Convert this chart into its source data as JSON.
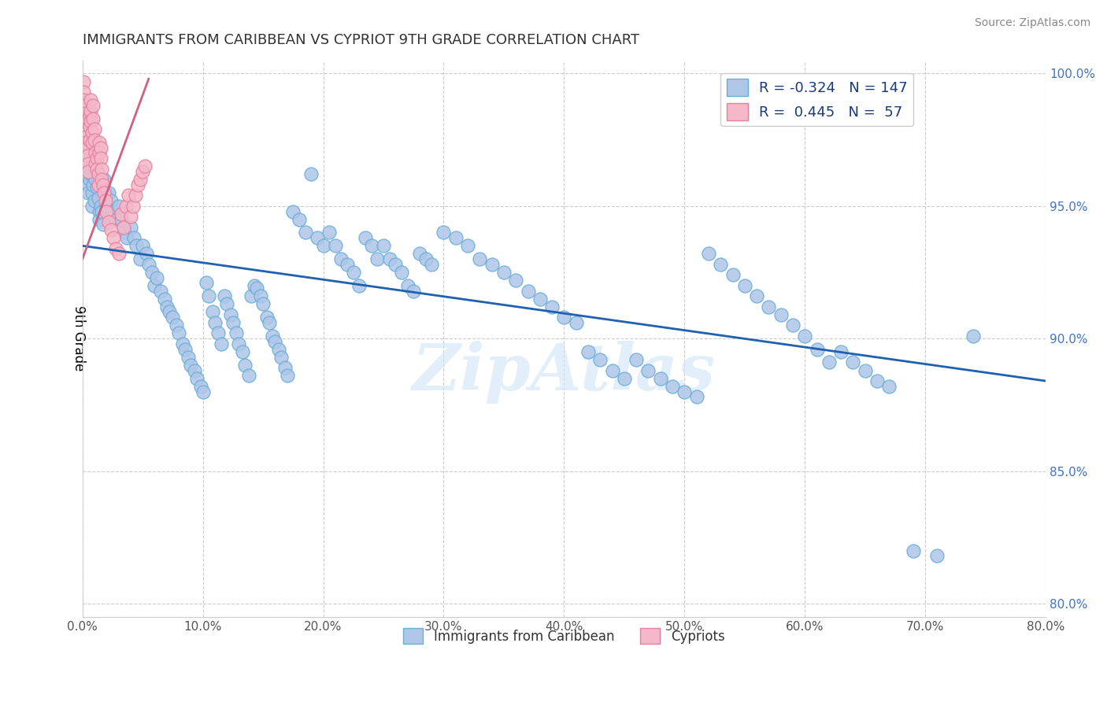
{
  "title": "IMMIGRANTS FROM CARIBBEAN VS CYPRIOT 9TH GRADE CORRELATION CHART",
  "source_text": "Source: ZipAtlas.com",
  "ylabel": "9th Grade",
  "xlim": [
    0.0,
    0.8
  ],
  "ylim": [
    0.795,
    1.005
  ],
  "xticks": [
    0.0,
    0.1,
    0.2,
    0.3,
    0.4,
    0.5,
    0.6,
    0.7,
    0.8
  ],
  "xticklabels": [
    "0.0%",
    "10.0%",
    "20.0%",
    "30.0%",
    "40.0%",
    "50.0%",
    "60.0%",
    "70.0%",
    "80.0%"
  ],
  "yticks": [
    0.8,
    0.85,
    0.9,
    0.95,
    1.0
  ],
  "yticklabels": [
    "80.0%",
    "85.0%",
    "90.0%",
    "95.0%",
    "100.0%"
  ],
  "blue_color": "#aec6e8",
  "blue_edge_color": "#6aaed6",
  "pink_color": "#f4b8c8",
  "pink_edge_color": "#e87fa0",
  "blue_line_color": "#2060b0",
  "pink_line_color": "#d06080",
  "R_blue": -0.324,
  "N_blue": 147,
  "R_pink": 0.445,
  "N_pink": 57,
  "legend_label_blue": "Immigrants from Caribbean",
  "legend_label_pink": "Cypriots",
  "watermark": "ZipAtlas",
  "blue_line_x0": 0.0,
  "blue_line_y0": 0.935,
  "blue_line_x1": 0.8,
  "blue_line_y1": 0.884,
  "pink_line_x0": 0.0,
  "pink_line_y0": 0.93,
  "pink_line_x1": 0.055,
  "pink_line_y1": 0.998,
  "blue_scatter_x": [
    0.003,
    0.004,
    0.005,
    0.005,
    0.006,
    0.007,
    0.008,
    0.008,
    0.009,
    0.01,
    0.011,
    0.012,
    0.013,
    0.014,
    0.014,
    0.015,
    0.016,
    0.017,
    0.018,
    0.019,
    0.02,
    0.022,
    0.024,
    0.025,
    0.028,
    0.03,
    0.032,
    0.035,
    0.037,
    0.04,
    0.043,
    0.045,
    0.048,
    0.05,
    0.053,
    0.055,
    0.058,
    0.06,
    0.062,
    0.065,
    0.068,
    0.07,
    0.072,
    0.075,
    0.078,
    0.08,
    0.083,
    0.085,
    0.088,
    0.09,
    0.093,
    0.095,
    0.098,
    0.1,
    0.103,
    0.105,
    0.108,
    0.11,
    0.113,
    0.115,
    0.118,
    0.12,
    0.123,
    0.125,
    0.128,
    0.13,
    0.133,
    0.135,
    0.138,
    0.14,
    0.143,
    0.145,
    0.148,
    0.15,
    0.153,
    0.155,
    0.158,
    0.16,
    0.163,
    0.165,
    0.168,
    0.17,
    0.175,
    0.18,
    0.185,
    0.19,
    0.195,
    0.2,
    0.205,
    0.21,
    0.215,
    0.22,
    0.225,
    0.23,
    0.235,
    0.24,
    0.245,
    0.25,
    0.255,
    0.26,
    0.265,
    0.27,
    0.275,
    0.28,
    0.285,
    0.29,
    0.3,
    0.31,
    0.32,
    0.33,
    0.34,
    0.35,
    0.36,
    0.37,
    0.38,
    0.39,
    0.4,
    0.41,
    0.42,
    0.43,
    0.44,
    0.45,
    0.46,
    0.47,
    0.48,
    0.49,
    0.5,
    0.51,
    0.52,
    0.53,
    0.54,
    0.55,
    0.56,
    0.57,
    0.58,
    0.59,
    0.6,
    0.61,
    0.62,
    0.63,
    0.64,
    0.65,
    0.66,
    0.67,
    0.69,
    0.71,
    0.74
  ],
  "blue_scatter_y": [
    0.97,
    0.965,
    0.958,
    0.955,
    0.96,
    0.962,
    0.955,
    0.95,
    0.958,
    0.952,
    0.96,
    0.957,
    0.953,
    0.948,
    0.945,
    0.95,
    0.948,
    0.943,
    0.96,
    0.955,
    0.95,
    0.955,
    0.952,
    0.948,
    0.945,
    0.95,
    0.945,
    0.94,
    0.938,
    0.942,
    0.938,
    0.935,
    0.93,
    0.935,
    0.932,
    0.928,
    0.925,
    0.92,
    0.923,
    0.918,
    0.915,
    0.912,
    0.91,
    0.908,
    0.905,
    0.902,
    0.898,
    0.896,
    0.893,
    0.89,
    0.888,
    0.885,
    0.882,
    0.88,
    0.921,
    0.916,
    0.91,
    0.906,
    0.902,
    0.898,
    0.916,
    0.913,
    0.909,
    0.906,
    0.902,
    0.898,
    0.895,
    0.89,
    0.886,
    0.916,
    0.92,
    0.919,
    0.916,
    0.913,
    0.908,
    0.906,
    0.901,
    0.899,
    0.896,
    0.893,
    0.889,
    0.886,
    0.948,
    0.945,
    0.94,
    0.962,
    0.938,
    0.935,
    0.94,
    0.935,
    0.93,
    0.928,
    0.925,
    0.92,
    0.938,
    0.935,
    0.93,
    0.935,
    0.93,
    0.928,
    0.925,
    0.92,
    0.918,
    0.932,
    0.93,
    0.928,
    0.94,
    0.938,
    0.935,
    0.93,
    0.928,
    0.925,
    0.922,
    0.918,
    0.915,
    0.912,
    0.908,
    0.906,
    0.895,
    0.892,
    0.888,
    0.885,
    0.892,
    0.888,
    0.885,
    0.882,
    0.88,
    0.878,
    0.932,
    0.928,
    0.924,
    0.92,
    0.916,
    0.912,
    0.909,
    0.905,
    0.901,
    0.896,
    0.891,
    0.895,
    0.891,
    0.888,
    0.884,
    0.882,
    0.82,
    0.818,
    0.901
  ],
  "pink_scatter_x": [
    0.001,
    0.001,
    0.001,
    0.002,
    0.002,
    0.002,
    0.003,
    0.003,
    0.003,
    0.004,
    0.004,
    0.005,
    0.005,
    0.006,
    0.006,
    0.006,
    0.007,
    0.007,
    0.007,
    0.008,
    0.008,
    0.009,
    0.009,
    0.01,
    0.01,
    0.011,
    0.011,
    0.012,
    0.012,
    0.013,
    0.013,
    0.014,
    0.014,
    0.015,
    0.015,
    0.016,
    0.016,
    0.017,
    0.018,
    0.019,
    0.02,
    0.022,
    0.024,
    0.026,
    0.028,
    0.03,
    0.032,
    0.034,
    0.036,
    0.038,
    0.04,
    0.042,
    0.044,
    0.046,
    0.048,
    0.05,
    0.052
  ],
  "pink_scatter_y": [
    0.997,
    0.993,
    0.99,
    0.988,
    0.985,
    0.982,
    0.979,
    0.976,
    0.974,
    0.972,
    0.969,
    0.966,
    0.963,
    0.984,
    0.98,
    0.975,
    0.99,
    0.986,
    0.982,
    0.978,
    0.974,
    0.988,
    0.983,
    0.979,
    0.975,
    0.97,
    0.966,
    0.968,
    0.964,
    0.962,
    0.958,
    0.974,
    0.97,
    0.972,
    0.968,
    0.964,
    0.96,
    0.958,
    0.955,
    0.952,
    0.948,
    0.944,
    0.941,
    0.938,
    0.934,
    0.932,
    0.947,
    0.942,
    0.95,
    0.954,
    0.946,
    0.95,
    0.954,
    0.958,
    0.96,
    0.963,
    0.965
  ]
}
